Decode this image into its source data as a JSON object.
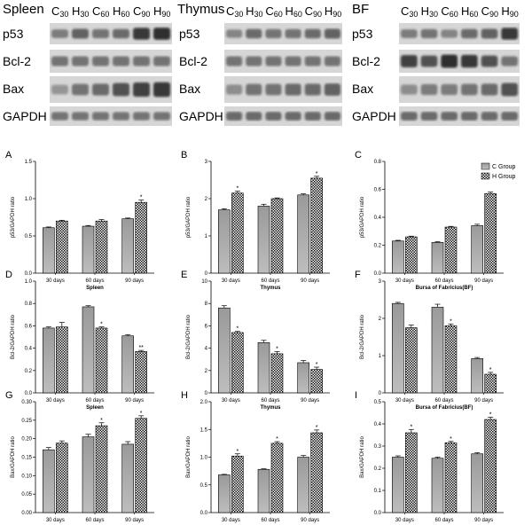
{
  "blots": [
    {
      "title": "Spleen",
      "lanes": [
        [
          "C",
          "30"
        ],
        [
          "H",
          "30"
        ],
        [
          "C",
          "60"
        ],
        [
          "H",
          "60"
        ],
        [
          "C",
          "90"
        ],
        [
          "H",
          "90"
        ]
      ],
      "bands": [
        "p53",
        "Bcl-2",
        "Bax",
        "GAPDH"
      ]
    },
    {
      "title": "Thymus",
      "lanes": [
        [
          "C",
          "30"
        ],
        [
          "H",
          "30"
        ],
        [
          "C",
          "60"
        ],
        [
          "H",
          "60"
        ],
        [
          "C",
          "90"
        ],
        [
          "H",
          "90"
        ]
      ],
      "bands": [
        "p53",
        "Bcl-2",
        "Bax",
        "GAPDH"
      ]
    },
    {
      "title": "BF",
      "lanes": [
        [
          "C",
          "30"
        ],
        [
          "H",
          "30"
        ],
        [
          "C",
          "60"
        ],
        [
          "H",
          "60"
        ],
        [
          "C",
          "90"
        ],
        [
          "H",
          "90"
        ]
      ],
      "bands": [
        "p53",
        "Bcl-2",
        "Bax",
        "GAPDH"
      ]
    }
  ],
  "colors": {
    "c_group": "#a6a6a6",
    "h_group_hatch": "#000000"
  },
  "chart_data": [
    {
      "type": "bar",
      "panel": "A",
      "categories": [
        "30 days",
        "60 days",
        "90 days"
      ],
      "series": [
        {
          "name": "C Group",
          "values": [
            0.61,
            0.63,
            0.73
          ]
        },
        {
          "name": "H Group",
          "values": [
            0.7,
            0.7,
            0.95
          ]
        }
      ],
      "errors": [
        [
          0.01,
          0.01,
          0.01
        ],
        [
          0.01,
          0.02,
          0.03
        ]
      ],
      "stars": [
        [
          "",
          "",
          ""
        ],
        [
          "",
          "",
          "*"
        ]
      ],
      "xlabel": "Spleen",
      "ylabel": "p53/GAPDH ratio",
      "ylim": [
        0,
        1.5
      ],
      "yticks": [
        "0.0",
        "0.5",
        "1.0",
        "1.5"
      ]
    },
    {
      "type": "bar",
      "panel": "B",
      "categories": [
        "30 days",
        "60 days",
        "90 days"
      ],
      "series": [
        {
          "name": "C Group",
          "values": [
            1.7,
            1.8,
            2.1
          ]
        },
        {
          "name": "H Group",
          "values": [
            2.15,
            2.0,
            2.55
          ]
        }
      ],
      "errors": [
        [
          0.03,
          0.05,
          0.03
        ],
        [
          0.05,
          0.02,
          0.05
        ]
      ],
      "stars": [
        [
          "",
          "",
          ""
        ],
        [
          "*",
          "",
          "*"
        ]
      ],
      "xlabel": "Thymus",
      "ylabel": "p53/GAPDH ratio",
      "ylim": [
        0,
        3
      ],
      "yticks": [
        "0",
        "1",
        "2",
        "3"
      ]
    },
    {
      "type": "bar",
      "panel": "C",
      "categories": [
        "30 days",
        "60 days",
        "90 days"
      ],
      "series": [
        {
          "name": "C Group",
          "values": [
            0.23,
            0.22,
            0.34
          ]
        },
        {
          "name": "H Group",
          "values": [
            0.26,
            0.33,
            0.57
          ]
        }
      ],
      "errors": [
        [
          0.005,
          0.005,
          0.01
        ],
        [
          0.005,
          0.005,
          0.01
        ]
      ],
      "stars": [
        [
          "",
          "",
          ""
        ],
        [
          "",
          "",
          ""
        ]
      ],
      "xlabel": "Bursa of Fabricius(BF)",
      "ylabel": "p53/GAPDH ratio",
      "ylim": [
        0,
        0.8
      ],
      "yticks": [
        "0.0",
        "0.2",
        "0.4",
        "0.6",
        "0.8"
      ],
      "legend": [
        "C Group",
        "H Group"
      ]
    },
    {
      "type": "bar",
      "panel": "D",
      "categories": [
        "30 days",
        "60 days",
        "90 days"
      ],
      "series": [
        {
          "name": "C Group",
          "values": [
            0.58,
            0.77,
            0.51
          ]
        },
        {
          "name": "H Group",
          "values": [
            0.59,
            0.58,
            0.37
          ]
        }
      ],
      "errors": [
        [
          0.01,
          0.01,
          0.01
        ],
        [
          0.04,
          0.01,
          0.01
        ]
      ],
      "stars": [
        [
          "",
          "",
          ""
        ],
        [
          "",
          "*",
          "**"
        ]
      ],
      "xlabel": "Spleen",
      "ylabel": "Bcl-2/GAPDH ratio",
      "ylim": [
        0,
        1.0
      ],
      "yticks": [
        "0.0",
        "0.2",
        "0.4",
        "0.6",
        "0.8",
        "1.0"
      ]
    },
    {
      "type": "bar",
      "panel": "E",
      "categories": [
        "30 days",
        "60 days",
        "90 days"
      ],
      "series": [
        {
          "name": "C Group",
          "values": [
            7.6,
            4.5,
            2.7
          ]
        },
        {
          "name": "H Group",
          "values": [
            5.4,
            3.5,
            2.1
          ]
        }
      ],
      "errors": [
        [
          0.2,
          0.2,
          0.2
        ],
        [
          0.1,
          0.2,
          0.2
        ]
      ],
      "stars": [
        [
          "",
          "",
          ""
        ],
        [
          "*",
          "*",
          "*"
        ]
      ],
      "xlabel": "Thymus",
      "ylabel": "Bcl-2/GAPDH ratio",
      "ylim": [
        0,
        10
      ],
      "yticks": [
        "0",
        "2",
        "4",
        "6",
        "8",
        "10"
      ]
    },
    {
      "type": "bar",
      "panel": "F",
      "categories": [
        "30 days",
        "60 days",
        "90 days"
      ],
      "series": [
        {
          "name": "C Group",
          "values": [
            2.4,
            2.3,
            0.92
          ]
        },
        {
          "name": "H Group",
          "values": [
            1.75,
            1.8,
            0.5
          ]
        }
      ],
      "errors": [
        [
          0.03,
          0.08,
          0.03
        ],
        [
          0.07,
          0.05,
          0.05
        ]
      ],
      "stars": [
        [
          "",
          "",
          ""
        ],
        [
          "",
          "*",
          "*"
        ]
      ],
      "xlabel": "Bursa of Fabricius(BF)",
      "ylabel": "Bcl-2/GAPDH ratio",
      "ylim": [
        0,
        3
      ],
      "yticks": [
        "0",
        "1",
        "2",
        "3"
      ]
    },
    {
      "type": "bar",
      "panel": "G",
      "categories": [
        "30 days",
        "60 days",
        "90 days"
      ],
      "series": [
        {
          "name": "C Group",
          "values": [
            0.17,
            0.205,
            0.185
          ]
        },
        {
          "name": "H Group",
          "values": [
            0.188,
            0.235,
            0.255
          ]
        }
      ],
      "errors": [
        [
          0.006,
          0.007,
          0.007
        ],
        [
          0.006,
          0.008,
          0.007
        ]
      ],
      "stars": [
        [
          "",
          "",
          ""
        ],
        [
          "",
          "*",
          "*"
        ]
      ],
      "xlabel": "Spleen",
      "ylabel": "Bax/GAPDH ratio",
      "ylim": [
        0,
        0.3
      ],
      "yticks": [
        "0.00",
        "0.05",
        "0.10",
        "0.15",
        "0.20",
        "0.25",
        "0.30"
      ]
    },
    {
      "type": "bar",
      "panel": "H",
      "categories": [
        "30 days",
        "60 days",
        "90 days"
      ],
      "series": [
        {
          "name": "C Group",
          "values": [
            0.68,
            0.78,
            1.0
          ]
        },
        {
          "name": "H Group",
          "values": [
            1.02,
            1.25,
            1.44
          ]
        }
      ],
      "errors": [
        [
          0.01,
          0.01,
          0.03
        ],
        [
          0.04,
          0.03,
          0.05
        ]
      ],
      "stars": [
        [
          "",
          "",
          ""
        ],
        [
          "*",
          "*",
          "*"
        ]
      ],
      "xlabel": "Thymus",
      "ylabel": "Bax/GAPDH ratio",
      "ylim": [
        0,
        2.0
      ],
      "yticks": [
        "0.0",
        "0.5",
        "1.0",
        "1.5",
        "2.0"
      ]
    },
    {
      "type": "bar",
      "panel": "I",
      "categories": [
        "30 days",
        "60 days",
        "90 days"
      ],
      "series": [
        {
          "name": "C Group",
          "values": [
            0.25,
            0.245,
            0.265
          ]
        },
        {
          "name": "H Group",
          "values": [
            0.36,
            0.315,
            0.42
          ]
        }
      ],
      "errors": [
        [
          0.006,
          0.005,
          0.005
        ],
        [
          0.015,
          0.006,
          0.01
        ]
      ],
      "stars": [
        [
          "",
          "",
          ""
        ],
        [
          "*",
          "*",
          "*"
        ]
      ],
      "xlabel": "Bursa of Fabricius(BF)",
      "ylabel": "Bax/GAPDH ratio",
      "ylim": [
        0,
        0.5
      ],
      "yticks": [
        "0.0",
        "0.1",
        "0.2",
        "0.3",
        "0.4",
        "0.5"
      ]
    }
  ]
}
